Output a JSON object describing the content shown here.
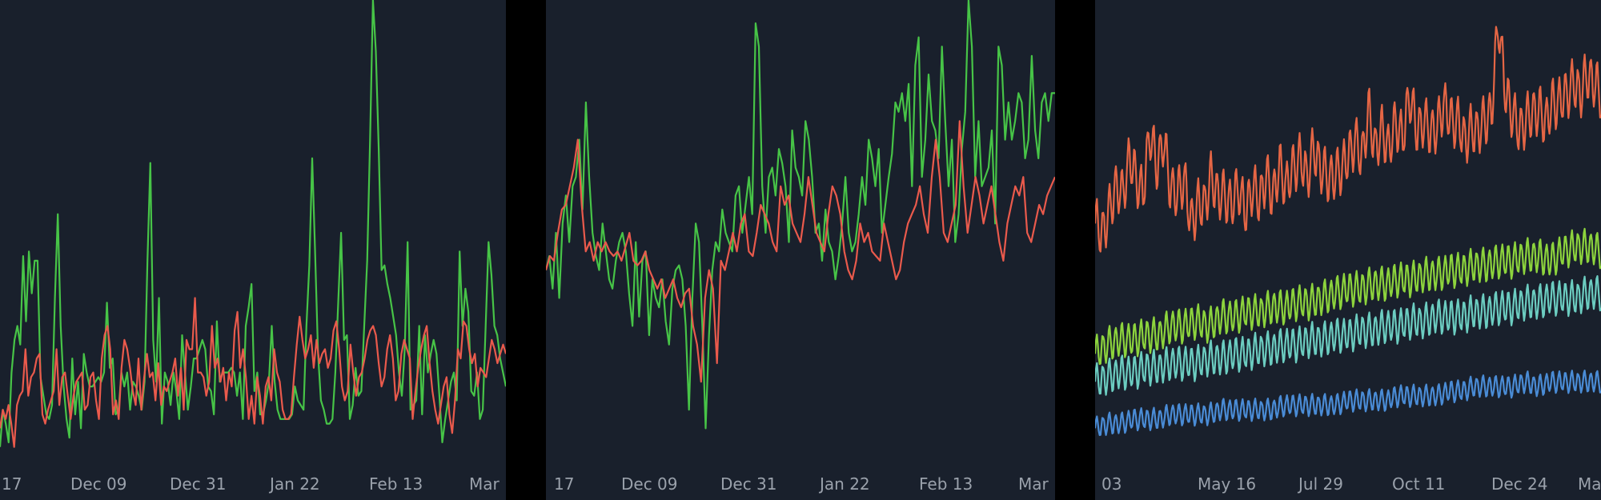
{
  "colors": {
    "background": "#000000",
    "panel": "#19202c",
    "tick_text": "#9aa1ab",
    "green": "#47c447",
    "red": "#ea5a4c",
    "orange": "#e56645",
    "lime": "#8dd43d",
    "teal": "#6ccdc1",
    "blue": "#4a8cd6"
  },
  "chart_data": [
    {
      "type": "line",
      "title": "",
      "xlabel": "",
      "ylabel": "",
      "grid": false,
      "legend": "none",
      "x_tick_labels": [
        "17",
        "Dec 09",
        "Dec 31",
        "Jan 22",
        "Feb 13",
        "Mar"
      ],
      "ylim": [
        0,
        100
      ],
      "series": [
        {
          "color": "#47c447",
          "values": [
            4,
            12,
            9,
            5,
            20,
            27,
            30,
            26,
            45,
            31,
            46,
            37,
            44,
            44,
            19,
            15,
            11,
            10,
            13,
            36,
            54,
            30,
            17,
            10,
            6,
            23,
            11,
            18,
            8,
            24,
            20,
            17,
            17,
            18,
            19,
            18,
            20,
            35,
            21,
            23,
            11,
            12,
            20,
            17,
            20,
            12,
            18,
            17,
            15,
            12,
            18,
            44,
            65,
            27,
            18,
            36,
            9,
            20,
            18,
            13,
            20,
            16,
            10,
            28,
            20,
            12,
            17,
            23,
            23,
            25,
            27,
            25,
            17,
            16,
            11,
            31,
            18,
            20,
            20,
            20,
            21,
            20,
            15,
            20,
            10,
            30,
            34,
            39,
            16,
            20,
            11,
            11,
            14,
            18,
            30,
            18,
            12,
            10,
            10,
            10,
            10,
            11,
            17,
            14,
            13,
            12,
            30,
            43,
            66,
            46,
            24,
            14,
            12,
            9,
            9,
            10,
            20,
            35,
            50,
            27,
            28,
            10,
            13,
            21,
            15,
            16,
            30,
            44,
            70,
            100,
            89,
            68,
            42,
            43,
            39,
            36,
            32,
            28,
            20,
            15,
            25,
            48,
            12,
            13,
            14,
            30,
            11,
            28,
            20,
            24,
            27,
            24,
            15,
            5,
            10,
            14,
            18,
            20,
            14,
            46,
            30,
            38,
            33,
            16,
            15,
            20,
            10,
            12,
            30,
            48,
            41,
            30,
            28,
            23,
            20,
            17
          ]
        },
        {
          "color": "#ea5a4c",
          "values": [
            8,
            12,
            10,
            13,
            9,
            4,
            13,
            15,
            16,
            25,
            15,
            19,
            20,
            23,
            24,
            11,
            9,
            12,
            14,
            16,
            25,
            13,
            19,
            20,
            15,
            10,
            15,
            18,
            19,
            20,
            12,
            13,
            19,
            20,
            14,
            10,
            23,
            28,
            30,
            25,
            11,
            14,
            10,
            21,
            27,
            25,
            21,
            16,
            13,
            23,
            12,
            19,
            24,
            19,
            20,
            14,
            22,
            13,
            17,
            16,
            18,
            20,
            23,
            15,
            21,
            12,
            27,
            25,
            25,
            36,
            20,
            20,
            19,
            15,
            18,
            30,
            21,
            23,
            18,
            21,
            14,
            20,
            17,
            29,
            33,
            21,
            25,
            19,
            10,
            15,
            9,
            19,
            15,
            9,
            17,
            19,
            14,
            25,
            20,
            18,
            12,
            10,
            10,
            11,
            19,
            26,
            32,
            27,
            23,
            25,
            28,
            21,
            27,
            22,
            24,
            25,
            21,
            23,
            29,
            31,
            25,
            17,
            14,
            16,
            26,
            20,
            15,
            19,
            20,
            23,
            27,
            29,
            30,
            28,
            22,
            17,
            19,
            25,
            28,
            23,
            14,
            16,
            24,
            27,
            25,
            23,
            10,
            16,
            21,
            25,
            28,
            30,
            22,
            16,
            12,
            9,
            13,
            17,
            19,
            11,
            7,
            14,
            25,
            23,
            31,
            30,
            25,
            22,
            24,
            17,
            21,
            20,
            19,
            23,
            27,
            25,
            22,
            24,
            26,
            24
          ]
        }
      ]
    },
    {
      "type": "line",
      "title": "",
      "xlabel": "",
      "ylabel": "",
      "grid": false,
      "legend": "none",
      "x_tick_labels": [
        "17",
        "Dec 09",
        "Dec 31",
        "Jan 22",
        "Feb 13",
        "Mar"
      ],
      "ylim": [
        0,
        100
      ],
      "series": [
        {
          "color": "#47c447",
          "values": [
            42,
            45,
            38,
            50,
            36,
            52,
            58,
            48,
            60,
            62,
            70,
            55,
            78,
            62,
            50,
            45,
            42,
            52,
            46,
            40,
            38,
            44,
            48,
            50,
            46,
            37,
            30,
            48,
            32,
            44,
            46,
            28,
            40,
            36,
            34,
            40,
            31,
            26,
            38,
            42,
            43,
            40,
            30,
            12,
            36,
            52,
            48,
            30,
            8,
            28,
            42,
            48,
            46,
            55,
            50,
            48,
            46,
            58,
            60,
            50,
            56,
            62,
            54,
            95,
            90,
            60,
            50,
            62,
            64,
            58,
            68,
            65,
            60,
            48,
            72,
            64,
            62,
            58,
            74,
            70,
            62,
            50,
            52,
            44,
            55,
            48,
            46,
            40,
            45,
            52,
            62,
            50,
            46,
            48,
            54,
            62,
            56,
            70,
            66,
            60,
            68,
            50,
            56,
            62,
            67,
            78,
            76,
            80,
            74,
            82,
            60,
            86,
            92,
            62,
            70,
            84,
            74,
            72,
            66,
            90,
            74,
            60,
            70,
            48,
            54,
            68,
            76,
            100,
            90,
            62,
            74,
            60,
            62,
            64,
            72,
            52,
            90,
            86,
            70,
            78,
            70,
            74,
            80,
            78,
            66,
            70,
            88,
            72,
            66,
            78,
            80,
            74,
            80,
            80
          ]
        },
        {
          "color": "#ea5a4c",
          "values": [
            42,
            45,
            44,
            50,
            55,
            56,
            60,
            64,
            70,
            56,
            46,
            48,
            44,
            48,
            46,
            48,
            46,
            45,
            46,
            44,
            47,
            50,
            44,
            43,
            44,
            46,
            42,
            40,
            38,
            40,
            36,
            38,
            40,
            36,
            34,
            37,
            38,
            30,
            26,
            18,
            36,
            42,
            38,
            22,
            44,
            42,
            46,
            50,
            46,
            52,
            54,
            46,
            45,
            50,
            56,
            54,
            52,
            48,
            46,
            60,
            56,
            58,
            52,
            50,
            48,
            54,
            62,
            56,
            50,
            48,
            46,
            54,
            60,
            58,
            54,
            46,
            42,
            40,
            44,
            52,
            48,
            50,
            46,
            45,
            44,
            52,
            48,
            44,
            40,
            42,
            48,
            52,
            54,
            56,
            60,
            54,
            50,
            62,
            70,
            62,
            50,
            48,
            52,
            56,
            74,
            60,
            50,
            56,
            62,
            58,
            52,
            56,
            60,
            54,
            48,
            44,
            52,
            56,
            60,
            58,
            62,
            50,
            48,
            52,
            56,
            54,
            58,
            60,
            62
          ]
        }
      ]
    },
    {
      "type": "line",
      "title": "",
      "xlabel": "",
      "ylabel": "",
      "grid": false,
      "legend": "none",
      "x_tick_labels": [
        "03",
        "May 16",
        "Jul 29",
        "Oct 11",
        "Dec 24",
        "Mar"
      ],
      "ylim": [
        0,
        100
      ],
      "series": [
        {
          "color": "#e56645",
          "trend_start": 48,
          "trend_end": 74,
          "weekly_swing": 6,
          "values": [
            52,
            50,
            54,
            60,
            58,
            66,
            62,
            58,
            72,
            64,
            70,
            60,
            58,
            62,
            52,
            56,
            56,
            62,
            58,
            58,
            56,
            60,
            54,
            60,
            57,
            62,
            58,
            64,
            60,
            64,
            66,
            62,
            68,
            64,
            62,
            62,
            64,
            66,
            70,
            66,
            76,
            68,
            72,
            68,
            74,
            70,
            80,
            72,
            74,
            72,
            72,
            78,
            74,
            74,
            70,
            72,
            72,
            74,
            76,
            96,
            80,
            76,
            72,
            74,
            76,
            76,
            74,
            78,
            78,
            80,
            82,
            80,
            84,
            82,
            80
          ]
        },
        {
          "color": "#8dd43d",
          "trend_start": 25,
          "trend_end": 45,
          "weekly_swing": 4,
          "values": [
            24,
            26,
            27,
            27,
            28,
            28,
            30,
            30,
            31,
            30,
            32,
            32,
            33,
            33,
            34,
            34,
            35,
            35,
            36,
            37,
            38,
            38,
            39,
            39,
            40,
            40,
            41,
            41,
            42,
            42,
            43,
            43,
            44,
            44,
            45,
            45,
            44,
            46,
            47,
            47,
            46
          ]
        },
        {
          "color": "#6ccdc1",
          "trend_start": 18,
          "trend_end": 36,
          "weekly_swing": 4,
          "values": [
            18,
            19,
            20,
            20,
            21,
            21,
            22,
            22,
            22,
            23,
            23,
            24,
            24,
            25,
            25,
            26,
            26,
            27,
            27,
            28,
            28,
            29,
            29,
            30,
            30,
            31,
            31,
            32,
            32,
            32,
            33,
            33,
            34,
            34,
            35,
            35,
            36,
            36,
            36,
            37,
            37
          ]
        },
        {
          "color": "#4a8cd6",
          "trend_start": 9,
          "trend_end": 18,
          "weekly_swing": 2.5,
          "values": [
            8,
            9,
            9,
            10,
            10,
            10,
            11,
            11,
            11,
            11,
            12,
            12,
            12,
            12,
            12,
            13,
            13,
            13,
            13,
            13,
            14,
            14,
            14,
            14,
            15,
            15,
            15,
            15,
            16,
            16,
            17,
            17,
            17,
            17,
            18,
            17,
            18,
            18,
            18,
            18,
            18
          ]
        }
      ]
    }
  ]
}
